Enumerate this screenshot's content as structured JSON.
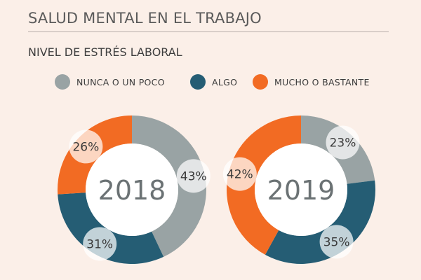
{
  "title": "SALUD MENTAL EN EL TRABAJO",
  "subtitle": "NIVEL DE ESTRÉS LABORAL",
  "legend": [
    {
      "label": "NUNCA O UN POCO",
      "color": "#99a3a4"
    },
    {
      "label": "ALGO",
      "color": "#255d74"
    },
    {
      "label": "MUCHO O BASTANTE",
      "color": "#f26b23"
    }
  ],
  "chart_data": [
    {
      "type": "pie",
      "title": "2018",
      "categories": [
        "NUNCA O UN POCO",
        "ALGO",
        "MUCHO O BASTANTE"
      ],
      "values": [
        43,
        31,
        26
      ],
      "labels": [
        "43%",
        "31%",
        "26%"
      ],
      "colors": [
        "#99a3a4",
        "#255d74",
        "#f26b23"
      ]
    },
    {
      "type": "pie",
      "title": "2019",
      "categories": [
        "NUNCA O UN POCO",
        "ALGO",
        "MUCHO O BASTANTE"
      ],
      "values": [
        23,
        35,
        42
      ],
      "labels": [
        "23%",
        "35%",
        "42%"
      ],
      "colors": [
        "#99a3a4",
        "#255d74",
        "#f26b23"
      ]
    }
  ]
}
